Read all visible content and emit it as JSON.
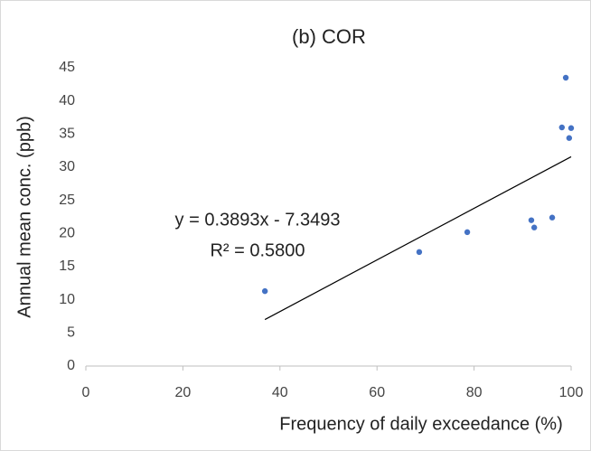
{
  "chart_data": {
    "type": "scatter",
    "title": "(b) COR",
    "x_label": "Frequency of daily exceedance (%)",
    "y_label": "Annual mean conc. (ppb)",
    "series": [
      {
        "color": "#4472c4",
        "x": [
          36.9,
          68.7,
          78.6,
          91.8,
          92.4,
          96.1,
          98.1,
          98.9,
          99.6,
          100
        ],
        "values": [
          11.3,
          17.2,
          20.2,
          22.0,
          20.9,
          22.4,
          36.0,
          43.5,
          34.4,
          35.9
        ]
      }
    ],
    "trendline": {
      "slope": 0.3893,
      "intercept": -7.3493,
      "color": "#000000",
      "equation": "y = 0.3893x - 7.3493",
      "r_squared": "R² = 0.5800"
    },
    "xlim": [
      0,
      100
    ],
    "xticks": [
      0,
      20,
      40,
      60,
      80,
      100
    ],
    "ylim": [
      0,
      45
    ],
    "yticks": [
      0,
      5,
      10,
      15,
      20,
      25,
      30,
      35,
      40,
      45
    ],
    "grid": false
  }
}
